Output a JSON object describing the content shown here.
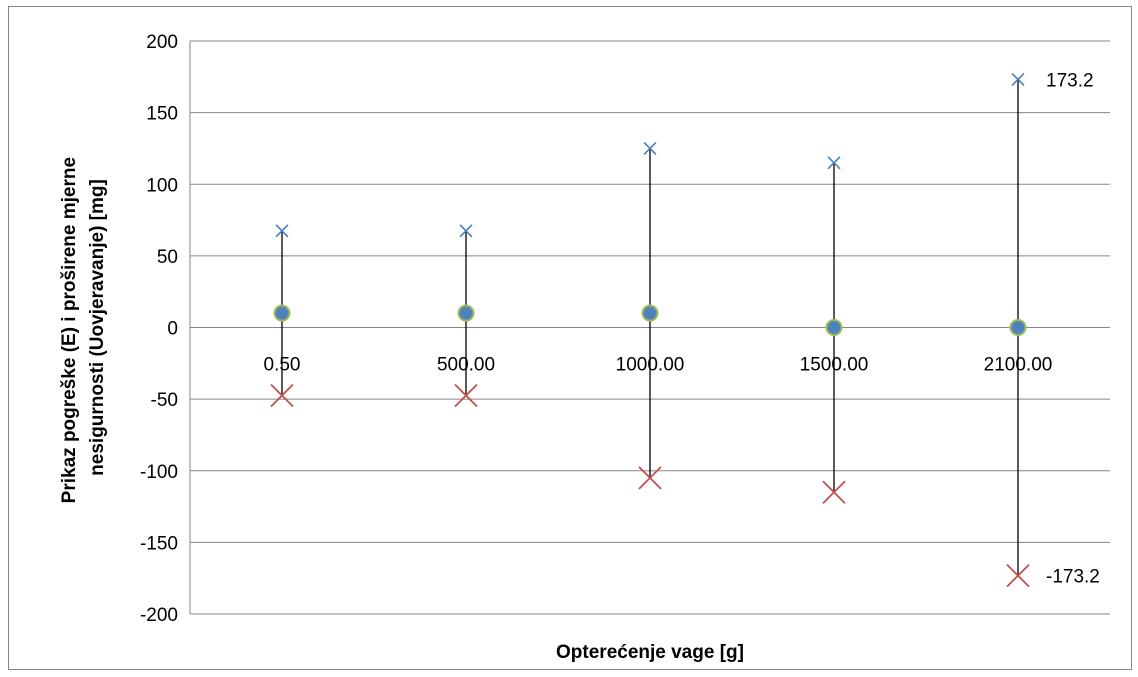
{
  "chart_data": {
    "type": "scatter",
    "xlabel": "Opterećenje vage [g]",
    "ylabel_lines": [
      "Prikaz pogreške (E) i proširene mjerne",
      "nesigurnosti (Uovjeravanje) [mg]"
    ],
    "categories": [
      "0.50",
      "500.00",
      "1000.00",
      "1500.00",
      "2100.00"
    ],
    "ylim": [
      -200,
      200
    ],
    "yticks": [
      "200",
      "150",
      "100",
      "50",
      "0",
      "-50",
      "-100",
      "-150",
      "-200"
    ],
    "grid": true,
    "legend": "none",
    "series": [
      {
        "values": [
          67.5,
          67.5,
          125,
          115,
          173.2
        ]
      },
      {
        "values": [
          10,
          10,
          10,
          0,
          0
        ]
      },
      {
        "values": [
          -47.5,
          -47.5,
          -105,
          -115,
          -173.2
        ]
      }
    ],
    "data_labels": [
      "173.2",
      "-173.2"
    ],
    "colors": {
      "upper_marker": "#4a7ebb",
      "point_fill": "#4f81bd",
      "point_stroke": "#9bbb59",
      "lower_marker": "#c0504d",
      "gridline": "#868686",
      "errorbar": "#000000"
    }
  }
}
